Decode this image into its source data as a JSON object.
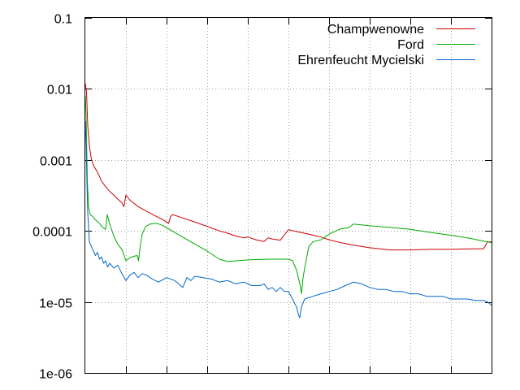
{
  "chart_data": {
    "type": "line",
    "title": "",
    "xlabel": "",
    "ylabel": "",
    "y_scale": "log",
    "ylim": [
      1e-06,
      0.1
    ],
    "xlim": [
      0,
      1000
    ],
    "x_tick_values": [
      100,
      200,
      300,
      400,
      500,
      600,
      700,
      800,
      900
    ],
    "x_tick_labels_shown": false,
    "y_ticks": [
      {
        "value": 1e-06,
        "label": "1e-06"
      },
      {
        "value": 1e-05,
        "label": "1e-05"
      },
      {
        "value": 0.0001,
        "label": "0.0001"
      },
      {
        "value": 0.001,
        "label": "0.001"
      },
      {
        "value": 0.01,
        "label": "0.01"
      },
      {
        "value": 0.1,
        "label": "0.1"
      }
    ],
    "grid": true,
    "legend": "top-right",
    "series": [
      {
        "name": "Champwenowne",
        "color": "#cc0000",
        "x": [
          0,
          3,
          6,
          10,
          14,
          18,
          22,
          28,
          34,
          40,
          50,
          60,
          70,
          80,
          90,
          95,
          100,
          110,
          130,
          150,
          170,
          190,
          205,
          210,
          215,
          240,
          270,
          300,
          330,
          350,
          370,
          390,
          400,
          420,
          440,
          450,
          460,
          480,
          500,
          520,
          550,
          580,
          600,
          630,
          660,
          700,
          750,
          800,
          850,
          900,
          950,
          980,
          990,
          1000
        ],
        "y": [
          0.012,
          0.009,
          0.003,
          0.0016,
          0.0011,
          0.0009,
          0.0008,
          0.0007,
          0.0006,
          0.0005,
          0.00042,
          0.00036,
          0.00032,
          0.00028,
          0.00025,
          0.00022,
          0.00032,
          0.00027,
          0.00022,
          0.00019,
          0.000165,
          0.000145,
          0.000128,
          0.00016,
          0.00017,
          0.000152,
          0.000133,
          0.000116,
          0.0001,
          9.3e-05,
          8.5e-05,
          8e-05,
          8.2e-05,
          7.5e-05,
          7.1e-05,
          8e-05,
          7.7e-05,
          7.4e-05,
          0.000104,
          9.8e-05,
          9e-05,
          8.2e-05,
          7.5e-05,
          6.8e-05,
          6.3e-05,
          5.8e-05,
          5.4e-05,
          5.4e-05,
          5.5e-05,
          5.5e-05,
          5.6e-05,
          5.6e-05,
          7e-05,
          7e-05
        ]
      },
      {
        "name": "Ford",
        "color": "#00aa00",
        "x": [
          0,
          2,
          5,
          8,
          12,
          18,
          24,
          30,
          36,
          42,
          50,
          54,
          60,
          70,
          80,
          90,
          100,
          110,
          120,
          128,
          131,
          135,
          140,
          148,
          160,
          175,
          190,
          220,
          260,
          300,
          330,
          350,
          400,
          450,
          500,
          510,
          520,
          528,
          532,
          536,
          540,
          550,
          560,
          580,
          600,
          625,
          650,
          660,
          700,
          750,
          800,
          850,
          900,
          950,
          980,
          1000
        ],
        "y": [
          0.008,
          0.004,
          0.0005,
          0.00022,
          0.00017,
          0.00016,
          0.000145,
          0.000135,
          0.000125,
          0.000113,
          0.000105,
          0.00017,
          0.000125,
          8.5e-05,
          6.5e-05,
          5.5e-05,
          3.8e-05,
          4.2e-05,
          4.4e-05,
          4.5e-05,
          3.8e-05,
          6e-05,
          9e-05,
          0.000115,
          0.000125,
          0.000128,
          0.00012,
          9.5e-05,
          7e-05,
          5.2e-05,
          4e-05,
          3.7e-05,
          3.9e-05,
          4e-05,
          4e-05,
          3.8e-05,
          2.8e-05,
          1.8e-05,
          1.3e-05,
          2.2e-05,
          3e-05,
          6e-05,
          7e-05,
          7.5e-05,
          9e-05,
          0.000105,
          0.000112,
          0.000125,
          0.000118,
          0.000112,
          0.000105,
          9.5e-05,
          8.7e-05,
          7.8e-05,
          7.2e-05,
          6.8e-05
        ]
      },
      {
        "name": "Ehrenfeucht Mycielski",
        "color": "#0066cc",
        "x": [
          0,
          2,
          4,
          6,
          10,
          15,
          20,
          25,
          30,
          35,
          40,
          45,
          50,
          55,
          60,
          70,
          80,
          90,
          100,
          110,
          120,
          130,
          140,
          150,
          165,
          180,
          200,
          220,
          240,
          250,
          260,
          270,
          290,
          310,
          330,
          350,
          370,
          390,
          410,
          430,
          440,
          450,
          460,
          470,
          480,
          490,
          500,
          510,
          520,
          525,
          528,
          532,
          540,
          560,
          580,
          600,
          620,
          640,
          660,
          680,
          700,
          720,
          740,
          760,
          780,
          800,
          820,
          840,
          860,
          880,
          900,
          920,
          940,
          960,
          980,
          990,
          1000
        ],
        "y": [
          0.0035,
          0.0016,
          0.0005,
          0.00018,
          7e-05,
          6e-05,
          5.2e-05,
          4.5e-05,
          5e-05,
          4e-05,
          4.3e-05,
          3.5e-05,
          3.8e-05,
          3.1e-05,
          3.5e-05,
          3e-05,
          3.3e-05,
          2.5e-05,
          2e-05,
          2.4e-05,
          2.6e-05,
          2.2e-05,
          2.5e-05,
          2.4e-05,
          2.1e-05,
          1.9e-05,
          2.2e-05,
          2e-05,
          1.6e-05,
          2.2e-05,
          2e-05,
          2.3e-05,
          2.2e-05,
          2.1e-05,
          1.9e-05,
          2e-05,
          1.8e-05,
          1.9e-05,
          1.7e-05,
          1.7e-05,
          1.8e-05,
          1.5e-05,
          1.6e-05,
          1.4e-05,
          1.6e-05,
          1.4e-05,
          1.4e-05,
          1.1e-05,
          8.5e-06,
          6.5e-06,
          6e-06,
          8.5e-06,
          1.1e-05,
          1.2e-05,
          1.3e-05,
          1.4e-05,
          1.5e-05,
          1.7e-05,
          1.9e-05,
          1.8e-05,
          1.6e-05,
          1.5e-05,
          1.5e-05,
          1.4e-05,
          1.4e-05,
          1.3e-05,
          1.3e-05,
          1.2e-05,
          1.2e-05,
          1.2e-05,
          1.1e-05,
          1.1e-05,
          1.1e-05,
          1.05e-05,
          1.05e-05,
          1e-05,
          9e-06
        ]
      }
    ]
  }
}
